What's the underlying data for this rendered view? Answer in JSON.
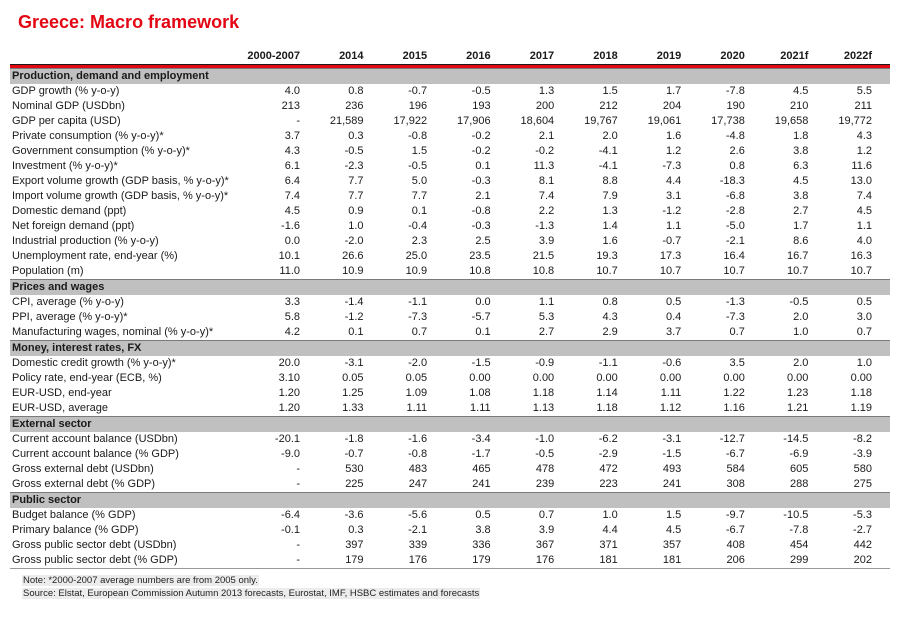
{
  "title": "Greece: Macro framework",
  "colors": {
    "accent_red": "#e30613",
    "section_header_bg": "#c0c0c0",
    "note_highlight": "#ececec"
  },
  "table": {
    "columns": [
      "2000-2007",
      "2014",
      "2015",
      "2016",
      "2017",
      "2018",
      "2019",
      "2020",
      "2021f",
      "2022f"
    ],
    "sections": [
      {
        "header": "Production, demand and employment",
        "rows": [
          {
            "label": "GDP growth (% y-o-y)",
            "values": [
              "4.0",
              "0.8",
              "-0.7",
              "-0.5",
              "1.3",
              "1.5",
              "1.7",
              "-7.8",
              "4.5",
              "5.5"
            ]
          },
          {
            "label": "Nominal GDP (USDbn)",
            "values": [
              "213",
              "236",
              "196",
              "193",
              "200",
              "212",
              "204",
              "190",
              "210",
              "211"
            ]
          },
          {
            "label": "GDP per capita (USD)",
            "values": [
              "-",
              "21,589",
              "17,922",
              "17,906",
              "18,604",
              "19,767",
              "19,061",
              "17,738",
              "19,658",
              "19,772"
            ]
          },
          {
            "label": "Private consumption (% y-o-y)*",
            "values": [
              "3.7",
              "0.3",
              "-0.8",
              "-0.2",
              "2.1",
              "2.0",
              "1.6",
              "-4.8",
              "1.8",
              "4.3"
            ]
          },
          {
            "label": "Government consumption (% y-o-y)*",
            "values": [
              "4.3",
              "-0.5",
              "1.5",
              "-0.2",
              "-0.2",
              "-4.1",
              "1.2",
              "2.6",
              "3.8",
              "1.2"
            ]
          },
          {
            "label": "Investment (% y-o-y)*",
            "values": [
              "6.1",
              "-2.3",
              "-0.5",
              "0.1",
              "11.3",
              "-4.1",
              "-7.3",
              "0.8",
              "6.3",
              "11.6"
            ]
          },
          {
            "label": "Export volume growth (GDP basis, % y-o-y)*",
            "values": [
              "6.4",
              "7.7",
              "5.0",
              "-0.3",
              "8.1",
              "8.8",
              "4.4",
              "-18.3",
              "4.5",
              "13.0"
            ]
          },
          {
            "label": "Import volume growth (GDP basis, % y-o-y)*",
            "values": [
              "7.4",
              "7.7",
              "7.7",
              "2.1",
              "7.4",
              "7.9",
              "3.1",
              "-6.8",
              "3.8",
              "7.4"
            ]
          },
          {
            "label": "Domestic demand (ppt)",
            "values": [
              "4.5",
              "0.9",
              "0.1",
              "-0.8",
              "2.2",
              "1.3",
              "-1.2",
              "-2.8",
              "2.7",
              "4.5"
            ]
          },
          {
            "label": "Net foreign demand (ppt)",
            "values": [
              "-1.6",
              "1.0",
              "-0.4",
              "-0.3",
              "-1.3",
              "1.4",
              "1.1",
              "-5.0",
              "1.7",
              "1.1"
            ]
          },
          {
            "label": "Industrial production (% y-o-y)",
            "values": [
              "0.0",
              "-2.0",
              "2.3",
              "2.5",
              "3.9",
              "1.6",
              "-0.7",
              "-2.1",
              "8.6",
              "4.0"
            ]
          },
          {
            "label": "Unemployment rate, end-year (%)",
            "values": [
              "10.1",
              "26.6",
              "25.0",
              "23.5",
              "21.5",
              "19.3",
              "17.3",
              "16.4",
              "16.7",
              "16.3"
            ]
          },
          {
            "label": "Population (m)",
            "values": [
              "11.0",
              "10.9",
              "10.9",
              "10.8",
              "10.8",
              "10.7",
              "10.7",
              "10.7",
              "10.7",
              "10.7"
            ]
          }
        ]
      },
      {
        "header": "Prices and wages",
        "rows": [
          {
            "label": "CPI, average (% y-o-y)",
            "values": [
              "3.3",
              "-1.4",
              "-1.1",
              "0.0",
              "1.1",
              "0.8",
              "0.5",
              "-1.3",
              "-0.5",
              "0.5"
            ]
          },
          {
            "label": "PPI, average (% y-o-y)*",
            "values": [
              "5.8",
              "-1.2",
              "-7.3",
              "-5.7",
              "5.3",
              "4.3",
              "0.4",
              "-7.3",
              "2.0",
              "3.0"
            ]
          },
          {
            "label": "Manufacturing wages, nominal (% y-o-y)*",
            "values": [
              "4.2",
              "0.1",
              "0.7",
              "0.1",
              "2.7",
              "2.9",
              "3.7",
              "0.7",
              "1.0",
              "0.7"
            ]
          }
        ]
      },
      {
        "header": "Money, interest rates, FX",
        "rows": [
          {
            "label": "Domestic credit growth (% y-o-y)*",
            "values": [
              "20.0",
              "-3.1",
              "-2.0",
              "-1.5",
              "-0.9",
              "-1.1",
              "-0.6",
              "3.5",
              "2.0",
              "1.0"
            ]
          },
          {
            "label": "Policy rate, end-year (ECB, %)",
            "values": [
              "3.10",
              "0.05",
              "0.05",
              "0.00",
              "0.00",
              "0.00",
              "0.00",
              "0.00",
              "0.00",
              "0.00"
            ]
          },
          {
            "label": "EUR-USD, end-year",
            "values": [
              "1.20",
              "1.25",
              "1.09",
              "1.08",
              "1.18",
              "1.14",
              "1.11",
              "1.22",
              "1.23",
              "1.18"
            ]
          },
          {
            "label": "EUR-USD, average",
            "values": [
              "1.20",
              "1.33",
              "1.11",
              "1.11",
              "1.13",
              "1.18",
              "1.12",
              "1.16",
              "1.21",
              "1.19"
            ]
          }
        ]
      },
      {
        "header": "External sector",
        "rows": [
          {
            "label": "Current account balance (USDbn)",
            "values": [
              "-20.1",
              "-1.8",
              "-1.6",
              "-3.4",
              "-1.0",
              "-6.2",
              "-3.1",
              "-12.7",
              "-14.5",
              "-8.2"
            ]
          },
          {
            "label": "Current account balance (% GDP)",
            "values": [
              "-9.0",
              "-0.7",
              "-0.8",
              "-1.7",
              "-0.5",
              "-2.9",
              "-1.5",
              "-6.7",
              "-6.9",
              "-3.9"
            ]
          },
          {
            "label": "Gross external debt (USDbn)",
            "values": [
              "-",
              "530",
              "483",
              "465",
              "478",
              "472",
              "493",
              "584",
              "605",
              "580"
            ]
          },
          {
            "label": "Gross external debt (% GDP)",
            "values": [
              "-",
              "225",
              "247",
              "241",
              "239",
              "223",
              "241",
              "308",
              "288",
              "275"
            ]
          }
        ]
      },
      {
        "header": "Public sector",
        "rows": [
          {
            "label": "Budget balance (% GDP)",
            "values": [
              "-6.4",
              "-3.6",
              "-5.6",
              "0.5",
              "0.7",
              "1.0",
              "1.5",
              "-9.7",
              "-10.5",
              "-5.3"
            ]
          },
          {
            "label": "Primary balance (% GDP)",
            "values": [
              "-0.1",
              "0.3",
              "-2.1",
              "3.8",
              "3.9",
              "4.4",
              "4.5",
              "-6.7",
              "-7.8",
              "-2.7"
            ]
          },
          {
            "label": "Gross public sector debt (USDbn)",
            "values": [
              "-",
              "397",
              "339",
              "336",
              "367",
              "371",
              "357",
              "408",
              "454",
              "442"
            ]
          },
          {
            "label": "Gross public sector debt (% GDP)",
            "values": [
              "-",
              "179",
              "176",
              "179",
              "176",
              "181",
              "181",
              "206",
              "299",
              "202"
            ]
          }
        ]
      }
    ]
  },
  "note": "Note: *2000-2007 average numbers are from 2005 only.",
  "source": "Source: Elstat, European Commission Autumn 2013 forecasts, Eurostat, IMF, HSBC estimates and forecasts"
}
